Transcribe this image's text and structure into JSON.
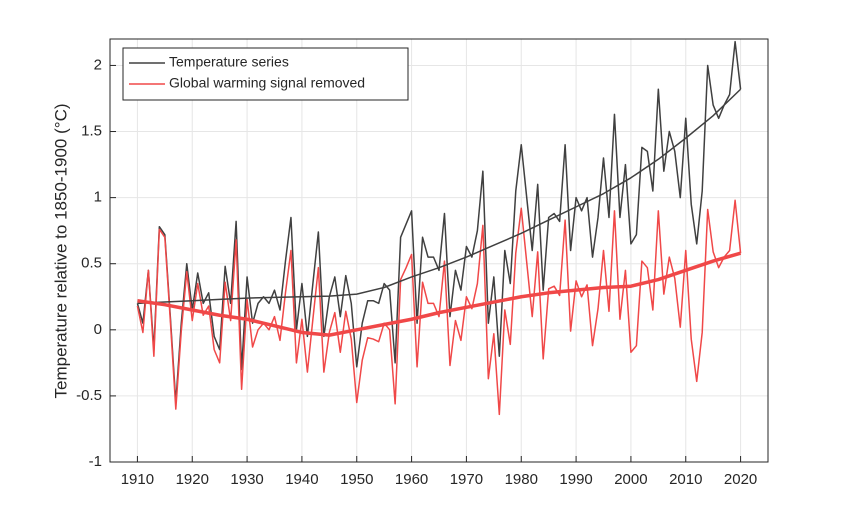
{
  "chart_data": {
    "type": "line",
    "y_label": "Temperature relative to 1850-1900 (°C)",
    "x": [
      1910,
      1911,
      1912,
      1913,
      1914,
      1915,
      1916,
      1917,
      1918,
      1919,
      1920,
      1921,
      1922,
      1923,
      1924,
      1925,
      1926,
      1927,
      1928,
      1929,
      1930,
      1931,
      1932,
      1933,
      1934,
      1935,
      1936,
      1937,
      1938,
      1939,
      1940,
      1941,
      1942,
      1943,
      1944,
      1945,
      1946,
      1947,
      1948,
      1949,
      1950,
      1951,
      1952,
      1953,
      1954,
      1955,
      1956,
      1957,
      1958,
      1959,
      1960,
      1961,
      1962,
      1963,
      1964,
      1965,
      1966,
      1967,
      1968,
      1969,
      1970,
      1971,
      1972,
      1973,
      1974,
      1975,
      1976,
      1977,
      1978,
      1979,
      1980,
      1981,
      1982,
      1983,
      1984,
      1985,
      1986,
      1987,
      1988,
      1989,
      1990,
      1991,
      1992,
      1993,
      1994,
      1995,
      1996,
      1997,
      1998,
      1999,
      2000,
      2001,
      2002,
      2003,
      2004,
      2005,
      2006,
      2007,
      2008,
      2009,
      2010,
      2011,
      2012,
      2013,
      2014,
      2015,
      2016,
      2017,
      2018,
      2019,
      2020
    ],
    "series": [
      {
        "name": "Temperature series",
        "color": "#404040",
        "width": 1.5,
        "values": [
          0.2,
          0.05,
          0.45,
          -0.15,
          0.78,
          0.72,
          0.1,
          -0.55,
          0.05,
          0.5,
          0.15,
          0.43,
          0.2,
          0.28,
          -0.05,
          -0.15,
          0.48,
          0.2,
          0.82,
          -0.3,
          0.4,
          0.05,
          0.2,
          0.25,
          0.2,
          0.3,
          0.15,
          0.52,
          0.85,
          0.0,
          0.35,
          -0.05,
          0.35,
          0.74,
          -0.05,
          0.25,
          0.4,
          0.1,
          0.41,
          0.2,
          -0.28,
          0.05,
          0.22,
          0.22,
          0.2,
          0.35,
          0.3,
          -0.25,
          0.7,
          0.8,
          0.9,
          0.05,
          0.7,
          0.55,
          0.55,
          0.45,
          0.88,
          0.1,
          0.45,
          0.3,
          0.63,
          0.55,
          0.75,
          1.2,
          0.05,
          0.4,
          -0.2,
          0.6,
          0.35,
          1.05,
          1.4,
          1.0,
          0.6,
          1.1,
          0.3,
          0.85,
          0.88,
          0.82,
          1.4,
          0.6,
          1.0,
          0.9,
          1.0,
          0.55,
          0.85,
          1.3,
          0.85,
          1.63,
          0.85,
          1.25,
          0.65,
          0.72,
          1.38,
          1.35,
          1.05,
          1.82,
          1.2,
          1.5,
          1.35,
          1.0,
          1.6,
          0.95,
          0.65,
          1.05,
          2.0,
          1.7,
          1.6,
          1.7,
          1.78,
          2.18,
          1.82
        ]
      },
      {
        "name": "Global warming signal removed",
        "color": "#f04848",
        "width": 1.5,
        "values": [
          0.18,
          -0.02,
          0.45,
          -0.2,
          0.76,
          0.7,
          0.07,
          -0.6,
          -0.01,
          0.44,
          0.07,
          0.35,
          0.11,
          0.18,
          -0.15,
          -0.25,
          0.36,
          0.07,
          0.68,
          -0.45,
          0.23,
          -0.13,
          0.0,
          0.05,
          0.0,
          0.1,
          -0.08,
          0.28,
          0.6,
          -0.25,
          0.08,
          -0.32,
          0.08,
          0.47,
          -0.32,
          -0.02,
          0.13,
          -0.17,
          0.14,
          -0.07,
          -0.55,
          -0.23,
          -0.06,
          -0.07,
          -0.09,
          0.05,
          0.0,
          -0.56,
          0.38,
          0.47,
          0.57,
          -0.28,
          0.36,
          0.2,
          0.2,
          0.1,
          0.52,
          -0.27,
          0.07,
          -0.08,
          0.25,
          0.16,
          0.35,
          0.79,
          -0.37,
          -0.03,
          -0.64,
          0.15,
          -0.11,
          0.58,
          0.92,
          0.51,
          0.1,
          0.59,
          -0.22,
          0.31,
          0.33,
          0.26,
          0.83,
          -0.01,
          0.37,
          0.25,
          0.34,
          -0.12,
          0.16,
          0.6,
          0.14,
          0.9,
          0.08,
          0.45,
          -0.17,
          -0.12,
          0.52,
          0.47,
          0.15,
          0.9,
          0.27,
          0.55,
          0.39,
          0.02,
          0.6,
          -0.07,
          -0.39,
          -0.02,
          0.91,
          0.59,
          0.47,
          0.55,
          0.6,
          0.98,
          0.58
        ]
      },
      {
        "color": "#404040",
        "width": 1.5,
        "x": [
          1910,
          1915,
          1920,
          1925,
          1930,
          1935,
          1940,
          1945,
          1950,
          1955,
          1960,
          1965,
          1970,
          1975,
          1980,
          1985,
          1990,
          1995,
          2000,
          2005,
          2010,
          2015,
          2020
        ],
        "values": [
          0.2,
          0.21,
          0.22,
          0.23,
          0.24,
          0.245,
          0.25,
          0.255,
          0.27,
          0.32,
          0.4,
          0.47,
          0.55,
          0.64,
          0.73,
          0.83,
          0.93,
          1.03,
          1.15,
          1.29,
          1.45,
          1.62,
          1.82
        ]
      },
      {
        "color": "#f04848",
        "width": 3.5,
        "x": [
          1910,
          1915,
          1920,
          1925,
          1930,
          1935,
          1940,
          1945,
          1950,
          1955,
          1960,
          1965,
          1970,
          1975,
          1980,
          1985,
          1990,
          1995,
          2000,
          2005,
          2010,
          2015,
          2020
        ],
        "values": [
          0.22,
          0.19,
          0.15,
          0.11,
          0.08,
          0.03,
          -0.02,
          -0.04,
          0.0,
          0.04,
          0.08,
          0.13,
          0.17,
          0.21,
          0.25,
          0.28,
          0.3,
          0.32,
          0.33,
          0.38,
          0.45,
          0.52,
          0.58
        ]
      }
    ],
    "xlim": [
      1905,
      2025
    ],
    "ylim": [
      -1,
      2.2
    ],
    "xticks": [
      1910,
      1920,
      1930,
      1940,
      1950,
      1960,
      1970,
      1980,
      1990,
      2000,
      2010,
      2020
    ],
    "yticks": [
      -1,
      -0.5,
      0,
      0.5,
      1,
      1.5,
      2
    ],
    "grid": true,
    "legend": "upper-left"
  }
}
